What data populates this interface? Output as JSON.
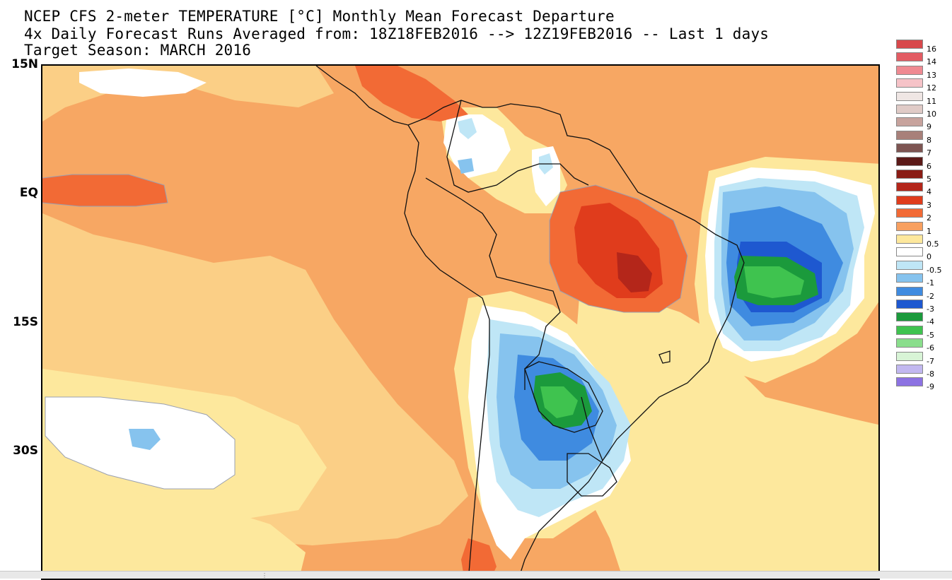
{
  "title": {
    "line1": "NCEP CFS 2-meter TEMPERATURE [°C] Monthly Mean Forecast Departure",
    "line2": "4x Daily Forecast Runs Averaged from: 18Z18FEB2016 --> 12Z19FEB2016 -- Last 1 days",
    "line3": "Target Season: MARCH 2016"
  },
  "latitude_labels": [
    "15N",
    "EQ",
    "15S",
    "30S"
  ],
  "colorbar": [
    {
      "label": "16",
      "color": "#d8484b"
    },
    {
      "label": "14",
      "color": "#e35c63"
    },
    {
      "label": "13",
      "color": "#ef8a92"
    },
    {
      "label": "12",
      "color": "#f6c3c8"
    },
    {
      "label": "11",
      "color": "#efe6e4"
    },
    {
      "label": "10",
      "color": "#e0cbc7"
    },
    {
      "label": "9",
      "color": "#c7a39d"
    },
    {
      "label": "8",
      "color": "#a8807a"
    },
    {
      "label": "7",
      "color": "#7d5552"
    },
    {
      "label": "6",
      "color": "#5b1a18"
    },
    {
      "label": "5",
      "color": "#8a1c14"
    },
    {
      "label": "4",
      "color": "#b4261a"
    },
    {
      "label": "3",
      "color": "#e03c1c"
    },
    {
      "label": "2",
      "color": "#f26a35"
    },
    {
      "label": "1",
      "color": "#f8a060"
    },
    {
      "label": "0.5",
      "color": "#fde89d"
    },
    {
      "label": "0",
      "color": "#ffffff"
    },
    {
      "label": "-0.5",
      "color": "#bfe6f6"
    },
    {
      "label": "-1",
      "color": "#86c3ee"
    },
    {
      "label": "-2",
      "color": "#3f8be0"
    },
    {
      "label": "-3",
      "color": "#1e58d0"
    },
    {
      "label": "-4",
      "color": "#1b9a3c"
    },
    {
      "label": "-5",
      "color": "#3fc34f"
    },
    {
      "label": "-6",
      "color": "#8ade8c"
    },
    {
      "label": "-7",
      "color": "#d8f4d6"
    },
    {
      "label": "-8",
      "color": "#c2b8f0"
    },
    {
      "label": "-9",
      "color": "#8c72e2"
    }
  ]
}
